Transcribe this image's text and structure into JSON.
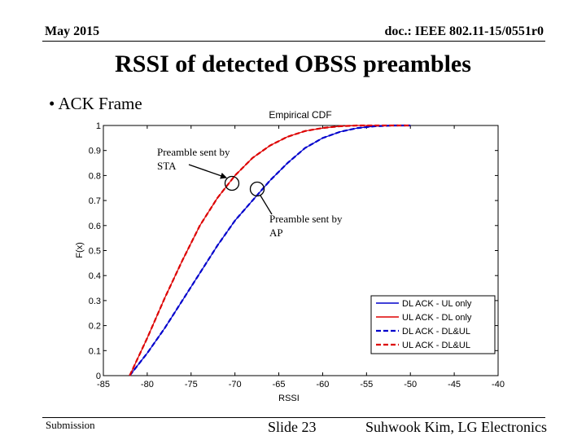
{
  "header": {
    "date": "May 2015",
    "doc_id": "doc.: IEEE 802.11-15/0551r0"
  },
  "slide": {
    "title": "RSSI of detected OBSS preambles",
    "bullet": "• ACK Frame"
  },
  "footer": {
    "submission": "Submission",
    "slide_number": "Slide 23",
    "author": "Suhwook Kim, LG Electronics"
  },
  "annotations": {
    "sta_line1": "Preamble sent by",
    "sta_line2": "STA",
    "ap_line1": "Preamble sent by",
    "ap_line2": "AP"
  },
  "chart_data": {
    "type": "line",
    "title": "Empirical CDF",
    "xlabel": "RSSI",
    "ylabel": "F(x)",
    "xlim": [
      -85,
      -40
    ],
    "ylim": [
      0,
      1
    ],
    "x_ticks": [
      -85,
      -80,
      -75,
      -70,
      -65,
      -60,
      -55,
      -50,
      -45,
      -40
    ],
    "y_ticks": [
      0,
      0.1,
      0.2,
      0.3,
      0.4,
      0.5,
      0.6,
      0.7,
      0.8,
      0.9,
      1
    ],
    "x_tick_labels": [
      "-85",
      "-80",
      "-75",
      "-70",
      "-65",
      "-60",
      "-55",
      "-50",
      "-45",
      "-40"
    ],
    "y_tick_labels": [
      "0",
      "0.1",
      "0.2",
      "0.3",
      "0.4",
      "0.5",
      "0.6",
      "0.7",
      "0.8",
      "0.9",
      "1"
    ],
    "legend_position": "bottom-right",
    "grid": false,
    "series": [
      {
        "name": "DL ACK - UL only",
        "color": "#0000cc",
        "dash": "solid",
        "x": [
          -82,
          -80,
          -78,
          -76,
          -74,
          -72,
          -70,
          -68,
          -66,
          -64,
          -62,
          -60,
          -58,
          -56,
          -54,
          -52,
          -50
        ],
        "y": [
          0,
          0.09,
          0.19,
          0.3,
          0.41,
          0.52,
          0.62,
          0.7,
          0.78,
          0.85,
          0.91,
          0.95,
          0.975,
          0.99,
          0.997,
          1,
          1
        ]
      },
      {
        "name": "UL ACK - DL only",
        "color": "#dd0000",
        "dash": "solid",
        "x": [
          -82,
          -80,
          -78,
          -76,
          -74,
          -72,
          -70,
          -68,
          -66,
          -64,
          -62,
          -60,
          -58,
          -56,
          -54,
          -52,
          -50
        ],
        "y": [
          0,
          0.15,
          0.31,
          0.46,
          0.6,
          0.71,
          0.8,
          0.87,
          0.92,
          0.955,
          0.978,
          0.99,
          0.997,
          1,
          1,
          1,
          1
        ]
      },
      {
        "name": "DL ACK - DL&UL",
        "color": "#0000cc",
        "dash": "dashed",
        "x": [
          -82,
          -80,
          -78,
          -76,
          -74,
          -72,
          -70,
          -68,
          -66,
          -64,
          -62,
          -60,
          -58,
          -56,
          -54,
          -52,
          -50
        ],
        "y": [
          0,
          0.09,
          0.19,
          0.3,
          0.41,
          0.52,
          0.62,
          0.7,
          0.78,
          0.85,
          0.91,
          0.95,
          0.975,
          0.99,
          0.997,
          1,
          1
        ]
      },
      {
        "name": "UL ACK - DL&UL",
        "color": "#dd0000",
        "dash": "dashed",
        "x": [
          -82,
          -80,
          -78,
          -76,
          -74,
          -72,
          -70,
          -68,
          -66,
          -64,
          -62,
          -60,
          -58,
          -56,
          -54,
          -52,
          -50
        ],
        "y": [
          0,
          0.15,
          0.31,
          0.46,
          0.6,
          0.71,
          0.8,
          0.87,
          0.92,
          0.955,
          0.978,
          0.99,
          0.997,
          1,
          1,
          1,
          1
        ]
      }
    ]
  }
}
